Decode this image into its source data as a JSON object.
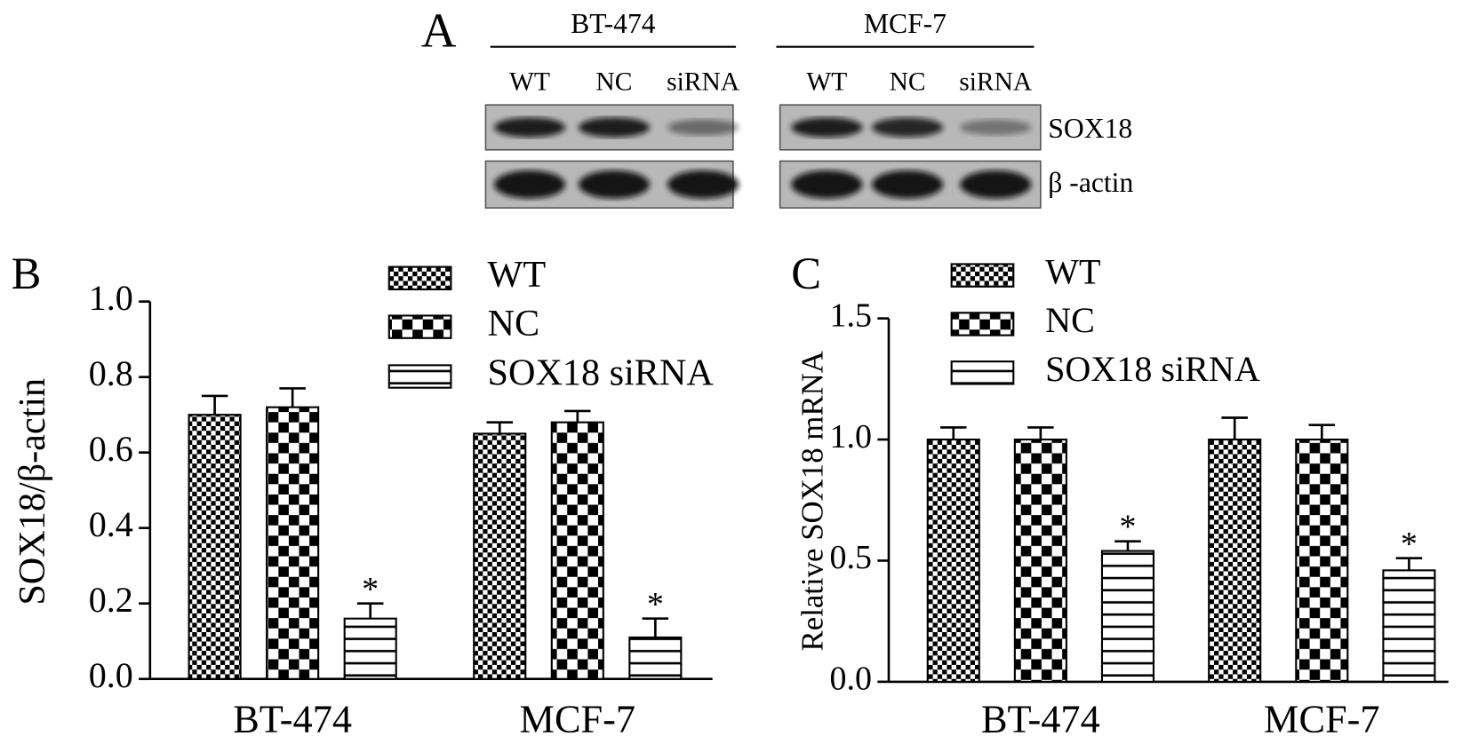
{
  "blot": {
    "label": "A",
    "groups": [
      {
        "name": "BT-474",
        "lanes": [
          "WT",
          "NC",
          "siRNA"
        ]
      },
      {
        "name": "MCF-7",
        "lanes": [
          "WT",
          "NC",
          "siRNA"
        ]
      }
    ],
    "rows": [
      "SOX18",
      "β -actin"
    ]
  },
  "chart_data": [
    {
      "type": "bar",
      "panel_label": "B",
      "y_label": "SOX18/β-actin",
      "categories": [
        "BT-474",
        "MCF-7"
      ],
      "series": [
        {
          "name": "WT",
          "pattern": "fine-checker",
          "values": [
            0.7,
            0.65
          ],
          "errors": [
            0.05,
            0.03
          ]
        },
        {
          "name": "NC",
          "pattern": "coarse-checker",
          "values": [
            0.72,
            0.68
          ],
          "errors": [
            0.05,
            0.03
          ]
        },
        {
          "name": "SOX18 siRNA",
          "pattern": "stripes",
          "values": [
            0.16,
            0.11
          ],
          "errors": [
            0.04,
            0.05
          ],
          "markers": [
            "*",
            "*"
          ]
        }
      ],
      "ylim": [
        0,
        1.0
      ],
      "yticks": [
        {
          "value": 0,
          "label": "0.0"
        },
        0.2,
        0.4,
        0.6,
        0.8,
        {
          "value": 1.0,
          "label": "1.0"
        }
      ]
    },
    {
      "type": "bar",
      "panel_label": "C",
      "y_label": "Relative SOX18 mRNA",
      "categories": [
        "BT-474",
        "MCF-7"
      ],
      "series": [
        {
          "name": "WT",
          "pattern": "fine-checker",
          "values": [
            1.0,
            1.0
          ],
          "errors": [
            0.05,
            0.09
          ]
        },
        {
          "name": "NC",
          "pattern": "coarse-checker",
          "values": [
            1.0,
            1.0
          ],
          "errors": [
            0.05,
            0.06
          ]
        },
        {
          "name": "SOX18 siRNA",
          "pattern": "stripes",
          "values": [
            0.54,
            0.46
          ],
          "errors": [
            0.04,
            0.05
          ],
          "markers": [
            "*",
            "*"
          ]
        }
      ],
      "ylim": [
        0,
        1.5
      ],
      "yticks": [
        {
          "value": 0,
          "label": "0.0"
        },
        0.5,
        {
          "value": 1.0,
          "label": "1.0"
        },
        1.5
      ]
    }
  ]
}
